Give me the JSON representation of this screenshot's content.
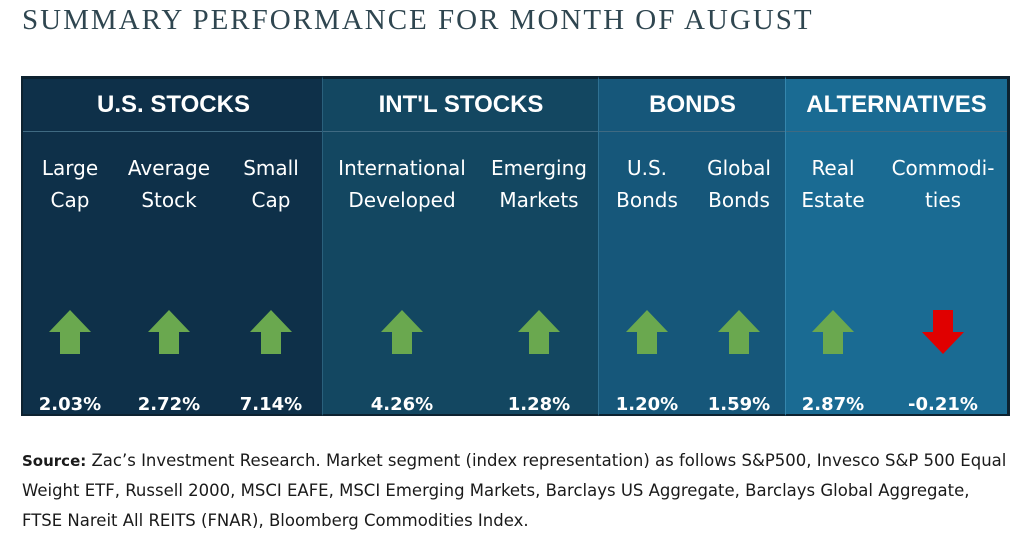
{
  "title": "SUMMARY PERFORMANCE FOR MONTH OF AUGUST",
  "colors": {
    "up_arrow": "#6aa84f",
    "down_arrow": "#e00000"
  },
  "groups": {
    "us": {
      "header": "U.S. STOCKS",
      "items": [
        {
          "label": "Large\nCap",
          "direction": "up",
          "value": "2.03%"
        },
        {
          "label": "Average\nStock",
          "direction": "up",
          "value": "2.72%"
        },
        {
          "label": "Small\nCap",
          "direction": "up",
          "value": "7.14%"
        }
      ]
    },
    "intl": {
      "header": "INT'L STOCKS",
      "items": [
        {
          "label": "International\nDeveloped",
          "direction": "up",
          "value": "4.26%"
        },
        {
          "label": "Emerging\nMarkets",
          "direction": "up",
          "value": "1.28%"
        }
      ]
    },
    "bonds": {
      "header": "BONDS",
      "items": [
        {
          "label": "U.S.\nBonds",
          "direction": "up",
          "value": "1.20%"
        },
        {
          "label": "Global\nBonds",
          "direction": "up",
          "value": "1.59%"
        }
      ]
    },
    "alt": {
      "header": "ALTERNATIVES",
      "items": [
        {
          "label": "Real\nEstate",
          "direction": "up",
          "value": "2.87%"
        },
        {
          "label": "Commodi-\nties",
          "direction": "down",
          "value": "-0.21%"
        }
      ]
    }
  },
  "source": {
    "label": "Source:",
    "text": " Zac’s Investment Research. Market segment (index representation) as follows S&P500, Invesco S&P 500 Equal Weight ETF, Russell 2000, MSCI EAFE, MSCI Emerging Markets, Barclays US Aggregate, Barclays Global Aggregate, FTSE Nareit All REITS (FNAR), Bloomberg Commodities Index."
  }
}
